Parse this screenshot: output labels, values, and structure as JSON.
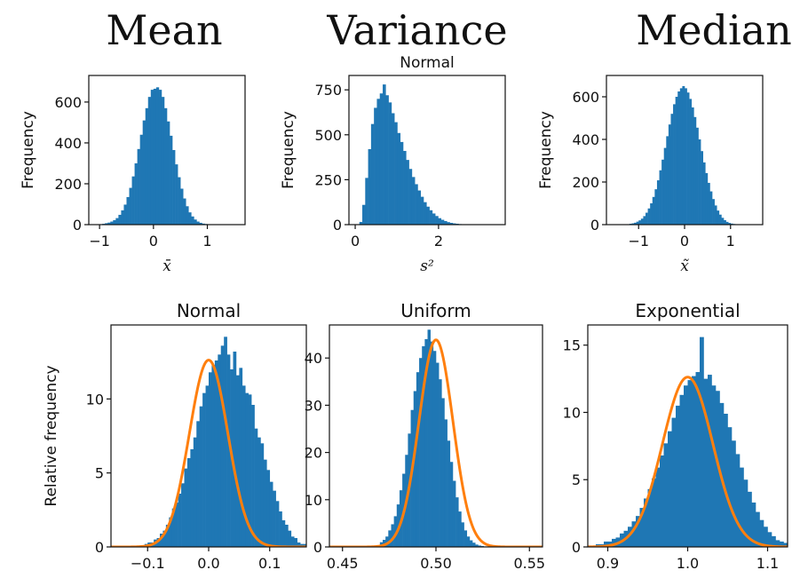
{
  "headers": [
    "Mean",
    "Variance",
    "Median"
  ],
  "colors": {
    "bar": "#1f77b4",
    "curve": "#ff7f0e"
  },
  "chart_data": [
    {
      "type": "bar",
      "id": "mean",
      "title": "",
      "xlabel": "x̄",
      "ylabel": "Frequency",
      "xlim": [
        -1.2,
        1.7
      ],
      "ylim": [
        0,
        730
      ],
      "xticks": [
        {
          "v": -1,
          "t": "−1"
        },
        {
          "v": 0,
          "t": "0"
        },
        {
          "v": 1,
          "t": "1"
        }
      ],
      "yticks": [
        {
          "v": 0,
          "t": "0"
        },
        {
          "v": 200,
          "t": "200"
        },
        {
          "v": 400,
          "t": "400"
        },
        {
          "v": 600,
          "t": "600"
        }
      ],
      "hist": {
        "start": -1.0,
        "width": 0.05,
        "values": [
          2,
          4,
          7,
          10,
          15,
          22,
          32,
          48,
          70,
          98,
          135,
          180,
          236,
          300,
          370,
          440,
          510,
          570,
          625,
          660,
          665,
          672,
          660,
          625,
          570,
          505,
          435,
          365,
          295,
          232,
          176,
          128,
          90,
          60,
          40,
          25,
          15,
          9,
          5,
          3,
          2,
          1
        ]
      }
    },
    {
      "type": "bar",
      "id": "variance",
      "title": "Normal",
      "xlabel": "s²",
      "ylabel": "Frequency",
      "xlim": [
        -0.15,
        3.6
      ],
      "ylim": [
        0,
        830
      ],
      "xticks": [
        {
          "v": 0,
          "t": "0"
        },
        {
          "v": 2,
          "t": "2"
        }
      ],
      "yticks": [
        {
          "v": 0,
          "t": "0"
        },
        {
          "v": 250,
          "t": "250"
        },
        {
          "v": 500,
          "t": "500"
        },
        {
          "v": 750,
          "t": "750"
        }
      ],
      "hist": {
        "start": 0.1,
        "width": 0.07,
        "values": [
          15,
          110,
          260,
          420,
          560,
          650,
          700,
          730,
          780,
          720,
          680,
          620,
          570,
          510,
          460,
          410,
          360,
          310,
          265,
          225,
          190,
          155,
          125,
          100,
          80,
          62,
          48,
          36,
          27,
          20,
          14,
          10,
          7,
          5,
          3,
          2,
          1
        ]
      }
    },
    {
      "type": "bar",
      "id": "median",
      "title": "",
      "xlabel": "x̃",
      "ylabel": "Frequency",
      "xlim": [
        -1.7,
        1.7
      ],
      "ylim": [
        0,
        700
      ],
      "xticks": [
        {
          "v": -1,
          "t": "−1"
        },
        {
          "v": 0,
          "t": "0"
        },
        {
          "v": 1,
          "t": "1"
        }
      ],
      "yticks": [
        {
          "v": 0,
          "t": "0"
        },
        {
          "v": 200,
          "t": "200"
        },
        {
          "v": 400,
          "t": "400"
        },
        {
          "v": 600,
          "t": "600"
        }
      ],
      "hist": {
        "start": -1.25,
        "width": 0.05,
        "values": [
          2,
          4,
          6,
          9,
          14,
          20,
          28,
          40,
          56,
          76,
          100,
          130,
          166,
          208,
          255,
          305,
          360,
          415,
          470,
          520,
          565,
          600,
          625,
          640,
          650,
          640,
          620,
          590,
          550,
          505,
          455,
          400,
          345,
          292,
          242,
          196,
          156,
          120,
          90,
          66,
          47,
          32,
          21,
          13,
          8,
          5,
          3,
          2,
          1
        ]
      }
    },
    {
      "type": "bar",
      "id": "normal",
      "title": "Normal",
      "xlabel": "",
      "ylabel": "Relative frequency",
      "xlim": [
        -0.16,
        0.16
      ],
      "ylim": [
        0,
        15.0
      ],
      "xticks": [
        {
          "v": -0.1,
          "t": "−0.1"
        },
        {
          "v": 0,
          "t": "0.0"
        },
        {
          "v": 0.1,
          "t": "0.1"
        }
      ],
      "yticks": [
        {
          "v": 0,
          "t": "0"
        },
        {
          "v": 5,
          "t": "5"
        },
        {
          "v": 10,
          "t": "10"
        }
      ],
      "curve": {
        "mu": 0,
        "sigma": 0.0316
      },
      "hist": {
        "start": -0.15,
        "width": 0.005,
        "values": [
          0,
          0,
          0,
          0,
          0,
          0,
          0,
          0,
          0,
          0.2,
          0.3,
          0.3,
          0.5,
          0.6,
          0.9,
          1.1,
          1.5,
          2.0,
          2.6,
          3.0,
          3.6,
          4.3,
          5.3,
          6.0,
          6.6,
          7.4,
          8.5,
          9.5,
          10.4,
          10.9,
          11.8,
          12.3,
          12.6,
          13.0,
          13.6,
          14.2,
          13.0,
          12.0,
          13.2,
          11.6,
          12.1,
          10.9,
          10.4,
          10.3,
          9.6,
          8.0,
          7.4,
          7.0,
          5.9,
          5.2,
          4.4,
          3.8,
          3.1,
          2.4,
          1.8,
          1.5,
          1.1,
          0.7,
          0.6,
          0.3,
          0.2,
          0.2,
          0.1
        ]
      }
    },
    {
      "type": "bar",
      "id": "uniform",
      "title": "Uniform",
      "xlabel": "",
      "ylabel": "",
      "xlim": [
        0.443,
        0.557
      ],
      "ylim": [
        0,
        47.0
      ],
      "xticks": [
        {
          "v": 0.45,
          "t": "0.45"
        },
        {
          "v": 0.5,
          "t": "0.50"
        },
        {
          "v": 0.55,
          "t": "0.55"
        }
      ],
      "yticks": [
        {
          "v": 0,
          "t": "0"
        },
        {
          "v": 10,
          "t": "10"
        },
        {
          "v": 20,
          "t": "20"
        },
        {
          "v": 30,
          "t": "30"
        },
        {
          "v": 40,
          "t": "40"
        }
      ],
      "curve": {
        "mu": 0.5,
        "sigma": 0.0091
      },
      "hist": {
        "start": 0.47,
        "width": 0.0015,
        "values": [
          1.0,
          1.5,
          2.2,
          3.5,
          4.8,
          6.5,
          9.0,
          12.0,
          15.5,
          19.5,
          24.0,
          29.0,
          33.0,
          37.0,
          40.0,
          42.5,
          44.0,
          46.0,
          43.5,
          41.5,
          39.0,
          35.5,
          31.5,
          27.0,
          22.5,
          18.0,
          14.0,
          10.5,
          7.5,
          5.2,
          3.5,
          2.2,
          1.4,
          0.9,
          0.5,
          0.3,
          0.2,
          0.1,
          0.1,
          0.1
        ]
      }
    },
    {
      "type": "bar",
      "id": "exponential",
      "title": "Exponential",
      "xlabel": "",
      "ylabel": "",
      "xlim": [
        0.875,
        1.125
      ],
      "ylim": [
        0,
        16.5
      ],
      "xticks": [
        {
          "v": 0.9,
          "t": "0.9"
        },
        {
          "v": 1.0,
          "t": "1.0"
        },
        {
          "v": 1.1,
          "t": "1.1"
        }
      ],
      "yticks": [
        {
          "v": 0,
          "t": "0"
        },
        {
          "v": 5,
          "t": "5"
        },
        {
          "v": 10,
          "t": "10"
        },
        {
          "v": 15,
          "t": "15"
        }
      ],
      "curve": {
        "mu": 1.0,
        "sigma": 0.0316
      },
      "hist": {
        "start": 0.885,
        "width": 0.005,
        "values": [
          0.2,
          0.2,
          0.4,
          0.4,
          0.6,
          0.7,
          1.0,
          1.2,
          1.5,
          1.9,
          2.3,
          2.9,
          3.6,
          4.3,
          5.1,
          5.9,
          6.8,
          7.7,
          8.6,
          9.6,
          10.5,
          11.3,
          12.0,
          12.4,
          12.7,
          13.0,
          15.6,
          12.5,
          12.8,
          12.0,
          11.6,
          10.7,
          9.9,
          8.9,
          7.9,
          6.9,
          5.9,
          5.0,
          4.1,
          3.3,
          2.6,
          2.0,
          1.5,
          1.1,
          0.8,
          0.5,
          0.4,
          0.3
        ]
      }
    }
  ]
}
